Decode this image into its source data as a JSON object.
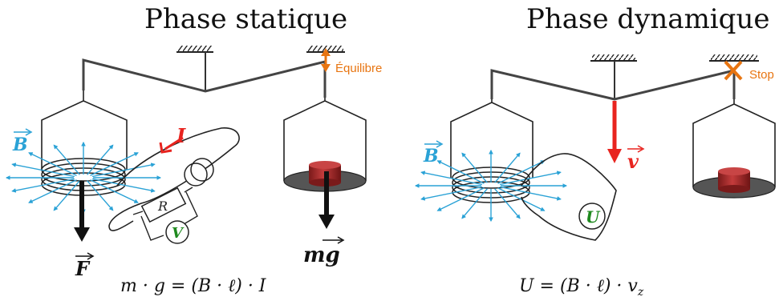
{
  "static_phase": {
    "title": "Phase statique",
    "equilibrium_label": "Équilibre",
    "field_label": "B",
    "current_label": "I",
    "force_label": "F",
    "weight_label": "mg",
    "resistor_label": "R",
    "voltmeter_label": "V",
    "equation": "m · g = (B · ℓ) · I"
  },
  "dynamic_phase": {
    "title": "Phase dynamique",
    "stop_label": "Stop",
    "field_label": "B",
    "velocity_label": "v",
    "voltmeter_label": "U",
    "equation": "U = (B · ℓ) · v_z"
  },
  "colors": {
    "field_blue": "#2aa2d6",
    "arrow_red": "#e8241f",
    "accent_orange": "#e87511",
    "meter_green": "#1f8a1f",
    "mass_red": "#a52a2a"
  }
}
